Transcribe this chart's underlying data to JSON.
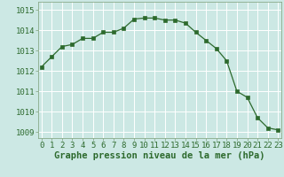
{
  "x": [
    0,
    1,
    2,
    3,
    4,
    5,
    6,
    7,
    8,
    9,
    10,
    11,
    12,
    13,
    14,
    15,
    16,
    17,
    18,
    19,
    20,
    21,
    22,
    23
  ],
  "y": [
    1012.2,
    1012.7,
    1013.2,
    1013.3,
    1013.6,
    1013.6,
    1013.9,
    1013.9,
    1014.1,
    1014.55,
    1014.6,
    1014.6,
    1014.5,
    1014.5,
    1014.35,
    1013.9,
    1013.5,
    1013.1,
    1012.5,
    1011.0,
    1010.7,
    1009.7,
    1009.2,
    1009.1
  ],
  "line_color": "#2d6a2d",
  "marker": "s",
  "marker_size": 2.5,
  "bg_color": "#cce8e4",
  "grid_color": "#ffffff",
  "ylim_min": 1008.7,
  "ylim_max": 1015.4,
  "yticks": [
    1009,
    1010,
    1011,
    1012,
    1013,
    1014,
    1015
  ],
  "xlabel": "Graphe pression niveau de la mer (hPa)",
  "xlabel_fontsize": 7.5,
  "tick_fontsize": 6.5,
  "tick_color": "#2d6a2d",
  "axis_color": "#2d6a2d",
  "spine_color": "#8aaa8a"
}
